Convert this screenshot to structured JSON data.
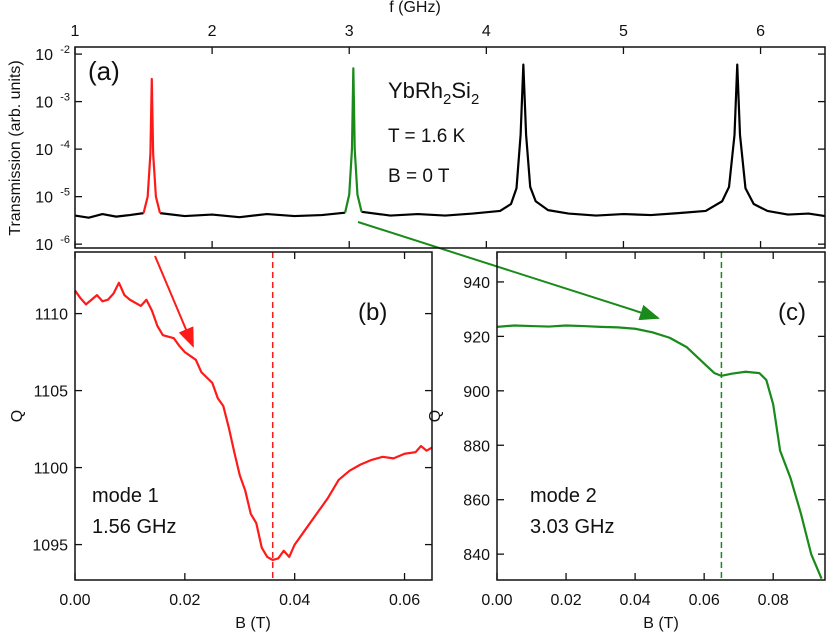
{
  "chart_data": [
    {
      "type": "line",
      "log_y": true,
      "xaxis_position": "top",
      "xlabel": "f (GHz)",
      "ylabel": "Transmission (arb. units)",
      "annotations": [
        "(a)",
        "YbRh2Si2",
        "T = 1.6 K",
        "B = 0 T"
      ],
      "xlim": [
        1,
        6.47
      ],
      "xticks": [
        1,
        2,
        3,
        4,
        5,
        6
      ],
      "ylim": [
        8.3e-07,
        0.0141
      ],
      "yticks": [
        {
          "value": 0.01,
          "label": "10",
          "exponent": "-2"
        },
        {
          "value": 0.001,
          "label": "10",
          "exponent": "-3"
        },
        {
          "value": 0.0001,
          "label": "10",
          "exponent": "-4"
        },
        {
          "value": 1e-05,
          "label": "10",
          "exponent": "-5"
        },
        {
          "value": 1e-06,
          "label": "10",
          "exponent": "-6"
        }
      ],
      "series": [
        {
          "color": "#000000",
          "x": [
            1.0,
            1.1,
            1.2,
            1.3,
            1.4,
            1.5,
            1.56,
            1.62,
            1.8,
            2.0,
            2.2,
            2.4,
            2.6,
            2.8,
            2.97,
            3.03,
            3.09,
            3.3,
            3.5,
            3.7,
            3.9,
            4.1,
            4.18,
            4.22,
            4.25,
            4.27,
            4.29,
            4.32,
            4.36,
            4.45,
            4.6,
            4.8,
            5.0,
            5.2,
            5.4,
            5.6,
            5.72,
            5.77,
            5.81,
            5.83,
            5.85,
            5.89,
            5.95,
            6.05,
            6.2,
            6.35,
            6.47
          ],
          "values": [
            4e-06,
            3.6e-06,
            4.3e-06,
            3.8e-06,
            4.1e-06,
            4.5e-06,
            null,
            4.5e-06,
            3.9e-06,
            4.2e-06,
            3.7e-06,
            4.3e-06,
            3.9e-06,
            4.1e-06,
            4.6e-06,
            null,
            4.8e-06,
            4e-06,
            4.3e-06,
            4e-06,
            4.4e-06,
            5e-06,
            7e-06,
            1.5e-05,
            0.0002,
            0.006,
            0.0002,
            1.6e-05,
            8e-06,
            5.2e-06,
            4.4e-06,
            4e-06,
            4.3e-06,
            4.1e-06,
            4.5e-06,
            5e-06,
            8e-06,
            1.6e-05,
            0.0002,
            0.006,
            0.0002,
            1.5e-05,
            7e-06,
            5e-06,
            4.2e-06,
            4.4e-06,
            3.9e-06
          ]
        },
        {
          "color": "#ff1a1a",
          "x": [
            1.5,
            1.53,
            1.55,
            1.56,
            1.57,
            1.59,
            1.62
          ],
          "values": [
            4.5e-06,
            1e-05,
            8e-05,
            0.003,
            8e-05,
            1e-05,
            4.5e-06
          ]
        },
        {
          "color": "#1a8a1a",
          "x": [
            2.97,
            3.0,
            3.02,
            3.03,
            3.04,
            3.06,
            3.09
          ],
          "values": [
            4.6e-06,
            1.1e-05,
            0.0001,
            0.005,
            0.0001,
            1.1e-05,
            4.8e-06
          ]
        }
      ]
    },
    {
      "type": "line",
      "xaxis_position": "bottom",
      "xlabel": "B (T)",
      "ylabel": "Q",
      "annotations": [
        "(b)",
        "mode 1",
        "1.56 GHz"
      ],
      "xlim": [
        0,
        0.065
      ],
      "xticks": [
        {
          "value": 0,
          "label": "0.00"
        },
        0.02,
        0.04,
        0.06
      ],
      "ylim": [
        1092.7,
        1114
      ],
      "yticks": [
        1095,
        1100,
        1105,
        1110
      ],
      "vline": {
        "value": 0.036,
        "color": "#ff1a1a"
      },
      "series": [
        {
          "color": "#ff1a1a",
          "x": [
            0,
            0.001,
            0.002,
            0.004,
            0.005,
            0.006,
            0.007,
            0.008,
            0.009,
            0.01,
            0.012,
            0.013,
            0.014,
            0.015,
            0.016,
            0.018,
            0.019,
            0.02,
            0.022,
            0.023,
            0.025,
            0.026,
            0.027,
            0.028,
            0.029,
            0.03,
            0.031,
            0.032,
            0.033,
            0.034,
            0.035,
            0.036,
            0.037,
            0.038,
            0.039,
            0.04,
            0.042,
            0.044,
            0.046,
            0.048,
            0.05,
            0.052,
            0.054,
            0.056,
            0.058,
            0.06,
            0.062,
            0.063,
            0.064,
            0.065
          ],
          "values": [
            1111.5,
            1111,
            1110.6,
            1111.2,
            1110.8,
            1110.9,
            1111.3,
            1112,
            1111.2,
            1110.9,
            1110.5,
            1110.9,
            1110.2,
            1109.2,
            1108.6,
            1108.4,
            1107.9,
            1107.5,
            1107,
            1106.2,
            1105.5,
            1104.5,
            1104,
            1102.6,
            1101,
            1099.5,
            1098.5,
            1097,
            1096.4,
            1094.8,
            1094.2,
            1094,
            1094.1,
            1094.6,
            1094.2,
            1095,
            1096,
            1097,
            1098,
            1099.2,
            1099.8,
            1100.2,
            1100.5,
            1100.7,
            1100.6,
            1100.9,
            1101,
            1101.4,
            1101.1,
            1101.3
          ]
        }
      ]
    },
    {
      "type": "line",
      "xaxis_position": "bottom",
      "xlabel": "B (T)",
      "ylabel": "Q",
      "annotations": [
        "(c)",
        "mode 2",
        "3.03 GHz"
      ],
      "xlim": [
        0,
        0.095
      ],
      "xticks": [
        {
          "value": 0,
          "label": "0.00"
        },
        0.02,
        0.04,
        0.06,
        0.08
      ],
      "ylim": [
        830.5,
        951
      ],
      "yticks": [
        840,
        860,
        880,
        900,
        920,
        940
      ],
      "vline": {
        "value": 0.065,
        "color": "#1a8a1a"
      },
      "series": [
        {
          "color": "#1a8a1a",
          "x": [
            0,
            0.005,
            0.01,
            0.015,
            0.02,
            0.025,
            0.03,
            0.035,
            0.04,
            0.045,
            0.05,
            0.055,
            0.06,
            0.063,
            0.065,
            0.068,
            0.072,
            0.076,
            0.078,
            0.08,
            0.082,
            0.085,
            0.088,
            0.091,
            0.094
          ],
          "values": [
            923.5,
            924,
            923.8,
            923.6,
            924,
            923.8,
            923.5,
            923.3,
            922.8,
            921.5,
            919.5,
            916,
            910,
            906.5,
            905.5,
            906.3,
            907,
            906.5,
            904,
            895,
            878,
            868,
            855,
            840,
            831
          ]
        }
      ]
    }
  ]
}
